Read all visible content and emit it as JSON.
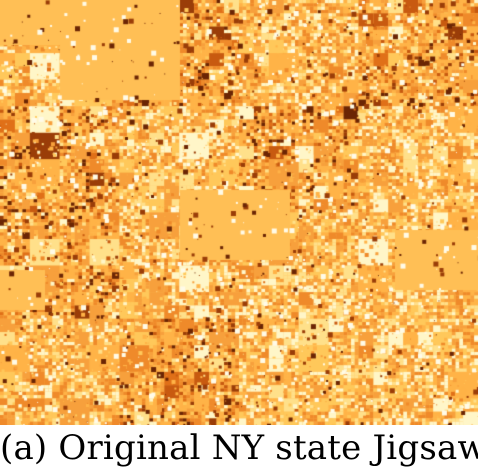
{
  "figure": {
    "caption": "(a) Original NY state Jigsaw",
    "visualization": {
      "kind": "jigsaw-heatmap",
      "palette": [
        "#fff6c8",
        "#ffe08a",
        "#ffc85a",
        "#ffb347",
        "#f7a03c",
        "#ef8a2a",
        "#e07018",
        "#c85a10",
        "#9a3d08",
        "#6b2504"
      ],
      "background_color": "#ffbf55"
    }
  }
}
